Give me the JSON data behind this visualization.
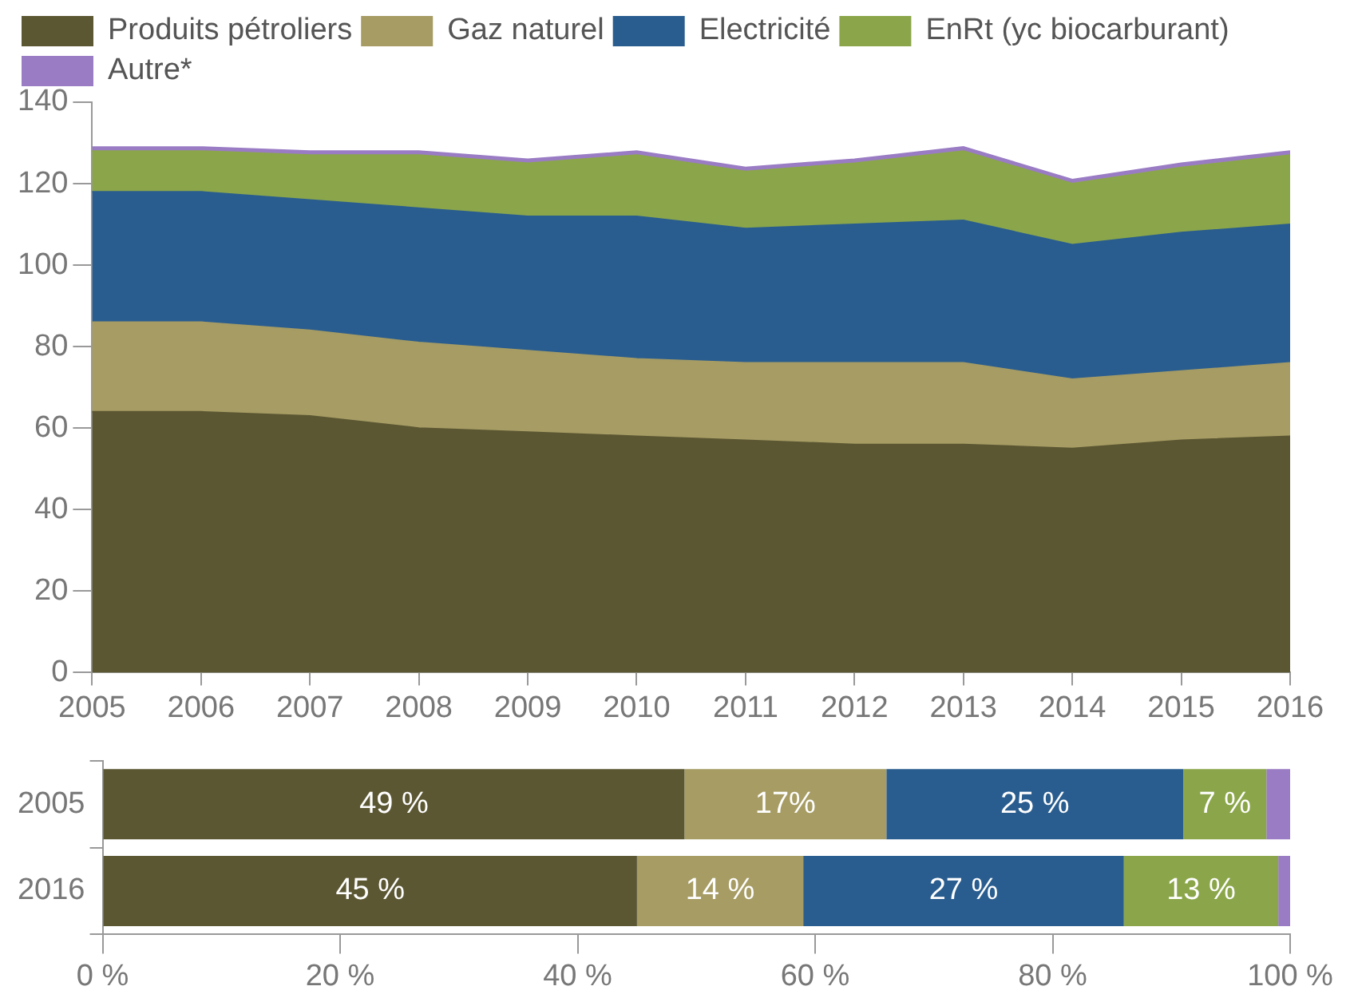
{
  "chart_data": [
    {
      "type": "area",
      "stacked": true,
      "legend": "top",
      "grid": false,
      "categories": [
        "2005",
        "2006",
        "2007",
        "2008",
        "2009",
        "2010",
        "2011",
        "2012",
        "2013",
        "2014",
        "2015",
        "2016"
      ],
      "ylim": [
        0,
        140
      ],
      "yticks": [
        0,
        20,
        40,
        60,
        80,
        100,
        120,
        140
      ],
      "series": [
        {
          "name": "Produits pétroliers",
          "color": "#5c5733",
          "values": [
            64,
            64,
            63,
            60,
            59,
            58,
            57,
            56,
            56,
            55,
            57,
            58
          ]
        },
        {
          "name": "Gaz naturel",
          "color": "#a69c64",
          "values": [
            22,
            22,
            21,
            21,
            20,
            19,
            19,
            20,
            20,
            17,
            17,
            18
          ]
        },
        {
          "name": "Electricité",
          "color": "#2a5d8f",
          "values": [
            32,
            32,
            32,
            33,
            33,
            35,
            33,
            34,
            35,
            33,
            34,
            34
          ]
        },
        {
          "name": "EnRt (yc biocarburant)",
          "color": "#8ba64a",
          "values": [
            10,
            10,
            11,
            13,
            13,
            15,
            14,
            15,
            17,
            15,
            16,
            17
          ]
        },
        {
          "name": "Autre*",
          "color": "#9a7cc4",
          "values": [
            1,
            1,
            1,
            1,
            1,
            1,
            1,
            1,
            1,
            1,
            1,
            1
          ]
        }
      ]
    },
    {
      "type": "bar",
      "orientation": "horizontal",
      "stacked": true,
      "legend": false,
      "grid": false,
      "categories": [
        "2005",
        "2016"
      ],
      "xlim": [
        0,
        100
      ],
      "xticks": [
        {
          "value": 0,
          "label": "0 %"
        },
        {
          "value": 20,
          "label": "20 %"
        },
        {
          "value": 40,
          "label": "40 %"
        },
        {
          "value": 60,
          "label": "60 %"
        },
        {
          "value": 80,
          "label": "80 %"
        },
        {
          "value": 100,
          "label": "100 %"
        }
      ],
      "series": [
        {
          "color": "#5c5733",
          "values": [
            49,
            45
          ],
          "value_labels": [
            "49 %",
            "45 %"
          ]
        },
        {
          "color": "#a69c64",
          "values": [
            17,
            14
          ],
          "value_labels": [
            "17%",
            "14 %"
          ]
        },
        {
          "color": "#2a5d8f",
          "values": [
            25,
            27
          ],
          "value_labels": [
            "25 %",
            "27 %"
          ]
        },
        {
          "color": "#8ba64a",
          "values": [
            7,
            13
          ],
          "value_labels": [
            "7 %",
            "13 %"
          ]
        },
        {
          "color": "#9a7cc4",
          "values": [
            2,
            1
          ],
          "value_labels": [
            null,
            null
          ]
        }
      ]
    }
  ]
}
